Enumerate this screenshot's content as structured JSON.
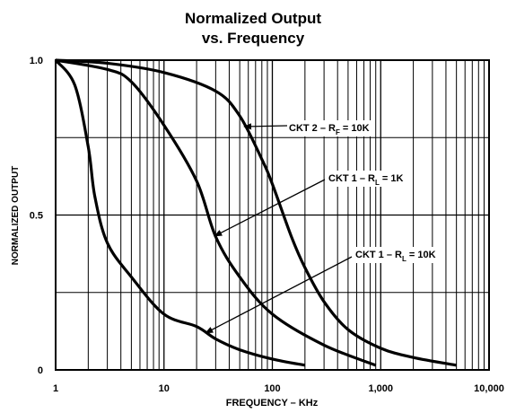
{
  "chart_data": {
    "type": "line",
    "title": [
      "Normalized Output",
      "vs. Frequency"
    ],
    "xlabel": "FREQUENCY – KHz",
    "ylabel": "NORMALIZED OUTPUT",
    "xscale": "log",
    "xlim": [
      1,
      10000
    ],
    "xticks": [
      1,
      10,
      100,
      {
        "value": 1000,
        "label": "1,000"
      },
      {
        "value": 10000,
        "label": "10,000"
      }
    ],
    "minor_grid": true,
    "ylim": [
      0,
      1
    ],
    "yticks": [
      0,
      0.5,
      {
        "value": 1,
        "label": "1.0"
      }
    ],
    "ygrid": [
      0.25,
      0.75
    ],
    "grid": true,
    "series": [
      {
        "name": [
          "CKT 2 – R",
          "F",
          " = 10K"
        ],
        "color": "#000000",
        "x": [
          1,
          3,
          10,
          30,
          50,
          80,
          100,
          150,
          200,
          300,
          500,
          1000,
          2000,
          5000
        ],
        "values": [
          1,
          0.99,
          0.96,
          0.9,
          0.82,
          0.68,
          0.6,
          0.43,
          0.33,
          0.22,
          0.13,
          0.07,
          0.04,
          0.015
        ]
      },
      {
        "name": [
          "CKT 1 – R",
          "L",
          " = 1K"
        ],
        "color": "#000000",
        "x": [
          1,
          3,
          5,
          10,
          20,
          30,
          50,
          100,
          300,
          900
        ],
        "values": [
          1,
          0.97,
          0.93,
          0.79,
          0.61,
          0.43,
          0.3,
          0.18,
          0.08,
          0.015
        ]
      },
      {
        "name": [
          "CKT 1 – R",
          "L",
          " = 10K"
        ],
        "color": "#000000",
        "x": [
          1,
          1.5,
          2,
          2.3,
          3,
          5,
          10,
          20,
          30,
          50,
          100,
          200
        ],
        "values": [
          1,
          0.92,
          0.72,
          0.56,
          0.41,
          0.3,
          0.18,
          0.14,
          0.1,
          0.065,
          0.035,
          0.015
        ]
      }
    ]
  }
}
